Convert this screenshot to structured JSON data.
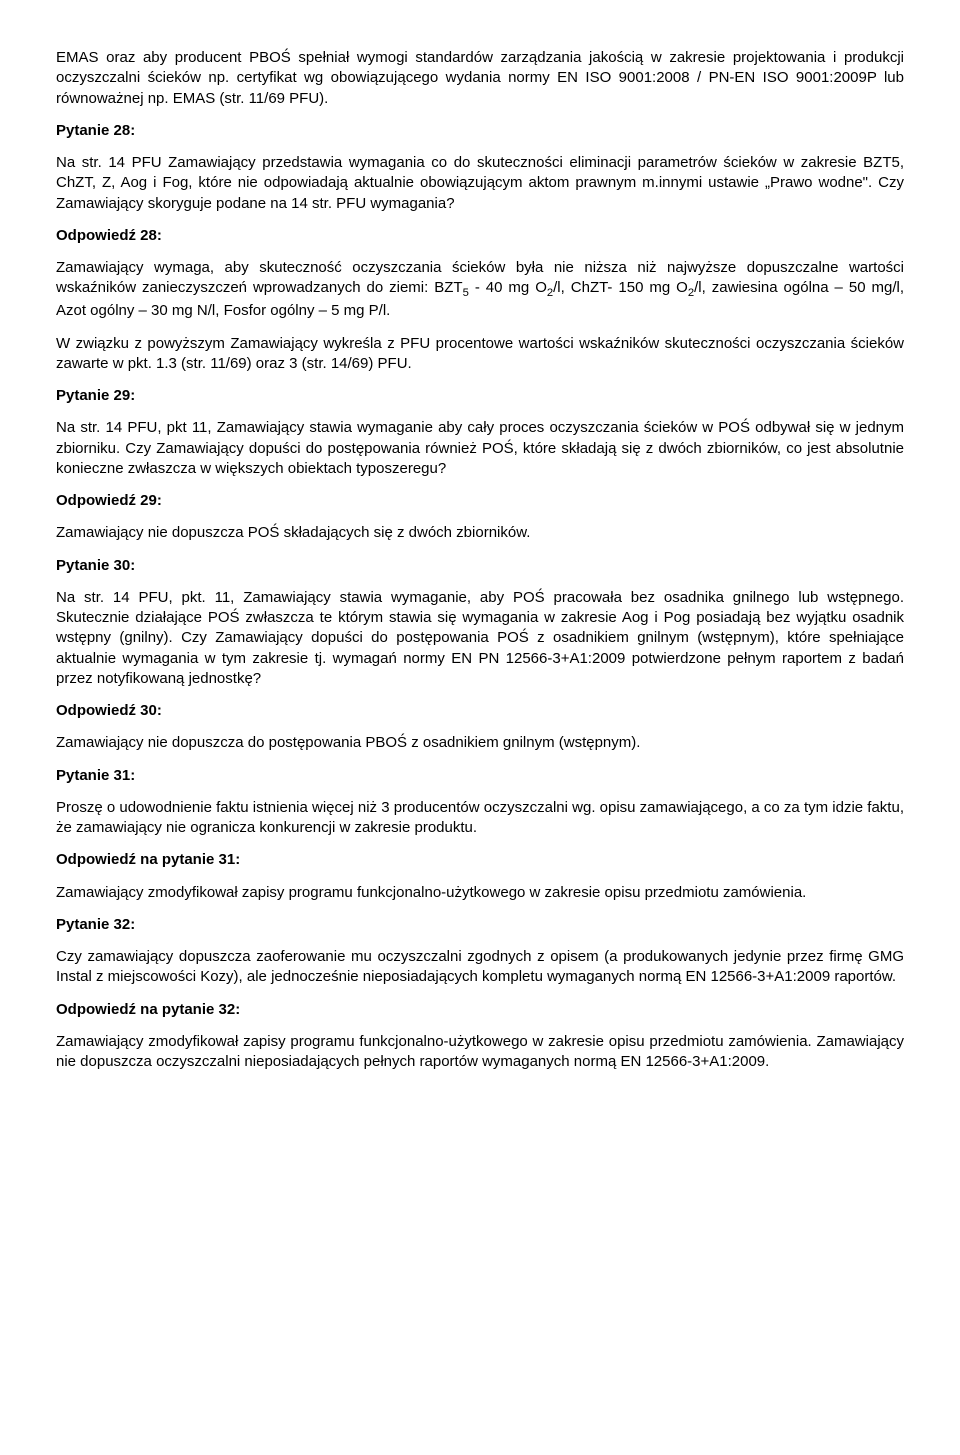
{
  "p1": "EMAS oraz aby producent PBOŚ spełniał wymogi standardów zarządzania jakością w zakresie projektowania i produkcji oczyszczalni ścieków np. certyfikat wg obowiązującego wydania normy EN ISO 9001:2008 / PN-EN ISO 9001:2009P lub równoważnej np. EMAS (str. 11/69 PFU).",
  "q28_label": "Pytanie 28:",
  "q28_body": "Na str. 14 PFU Zamawiający przedstawia wymagania co do skuteczności eliminacji parametrów ścieków w zakresie BZT5, ChZT, Z, Aog i Fog, które nie odpowiadają aktualnie obowiązującym aktom prawnym m.innymi ustawie „Prawo wodne\". Czy Zamawiający skoryguje podane na 14 str. PFU wymagania?",
  "a28_label": "Odpowiedź 28:",
  "a28_body_a": "Zamawiający wymaga, aby skuteczność oczyszczania ścieków była nie niższa niż najwyższe dopuszczalne wartości wskaźników zanieczyszczeń wprowadzanych do ziemi: BZT",
  "a28_body_b": " - 40 mg O",
  "a28_body_c": "/l, ChZT- 150 mg O",
  "a28_body_d": "/l, zawiesina ogólna – 50 mg/l, Azot ogólny – 30 mg N/l, Fosfor ogólny – 5 mg P/l.",
  "a28_body2": "W związku z powyższym Zamawiający wykreśla z PFU procentowe wartości wskaźników skuteczności oczyszczania ścieków zawarte w pkt. 1.3 (str. 11/69) oraz 3 (str. 14/69) PFU.",
  "q29_label": "Pytanie 29:",
  "q29_body": "Na str. 14 PFU, pkt 11, Zamawiający stawia wymaganie aby cały proces oczyszczania ścieków w POŚ odbywał się w jednym zbiorniku. Czy Zamawiający dopuści do postępowania również POŚ, które składają się z dwóch zbiorników, co jest absolutnie konieczne zwłaszcza w większych obiektach typoszeregu?",
  "a29_label": "Odpowiedź 29:",
  "a29_body": "Zamawiający nie dopuszcza POŚ składających się z dwóch zbiorników.",
  "q30_label": "Pytanie 30:",
  "q30_body": "Na str. 14 PFU, pkt. 11, Zamawiający stawia wymaganie, aby POŚ pracowała bez osadnika gnilnego lub wstępnego. Skutecznie działające POŚ zwłaszcza te którym stawia się wymagania w zakresie Aog i Pog posiadają bez wyjątku osadnik wstępny (gnilny). Czy Zamawiający dopuści do postępowania POŚ z osadnikiem gnilnym (wstępnym), które spełniające aktualnie wymagania w tym zakresie tj. wymagań normy EN PN 12566-3+A1:2009 potwierdzone pełnym raportem z badań przez notyfikowaną jednostkę?",
  "a30_label": "Odpowiedź 30:",
  "a30_body": "Zamawiający nie dopuszcza do postępowania PBOŚ z osadnikiem gnilnym (wstępnym).",
  "q31_label": "Pytanie 31:",
  "q31_body": "Proszę o udowodnienie faktu istnienia więcej niż 3 producentów oczyszczalni wg. opisu zamawiającego, a co za tym idzie faktu, że zamawiający nie ogranicza konkurencji w zakresie produktu.",
  "a31_label": "Odpowiedź na pytanie 31:",
  "a31_body": "Zamawiający zmodyfikował zapisy programu funkcjonalno-użytkowego w zakresie opisu przedmiotu zamówienia.",
  "q32_label": "Pytanie 32:",
  "q32_body": "Czy zamawiający dopuszcza zaoferowanie mu oczyszczalni zgodnych z opisem (a produkowanych jedynie przez firmę GMG Instal z miejscowości Kozy), ale jednocześnie nieposiadających kompletu wymaganych normą EN 12566-3+A1:2009 raportów.",
  "a32_label": "Odpowiedź na pytanie 32:",
  "a32_body": "Zamawiający zmodyfikował zapisy programu funkcjonalno-użytkowego w zakresie opisu przedmiotu zamówienia. Zamawiający nie dopuszcza oczyszczalni nieposiadających pełnych raportów wymaganych normą EN 12566-3+A1:2009.",
  "sub5": "5",
  "sub2": "2"
}
